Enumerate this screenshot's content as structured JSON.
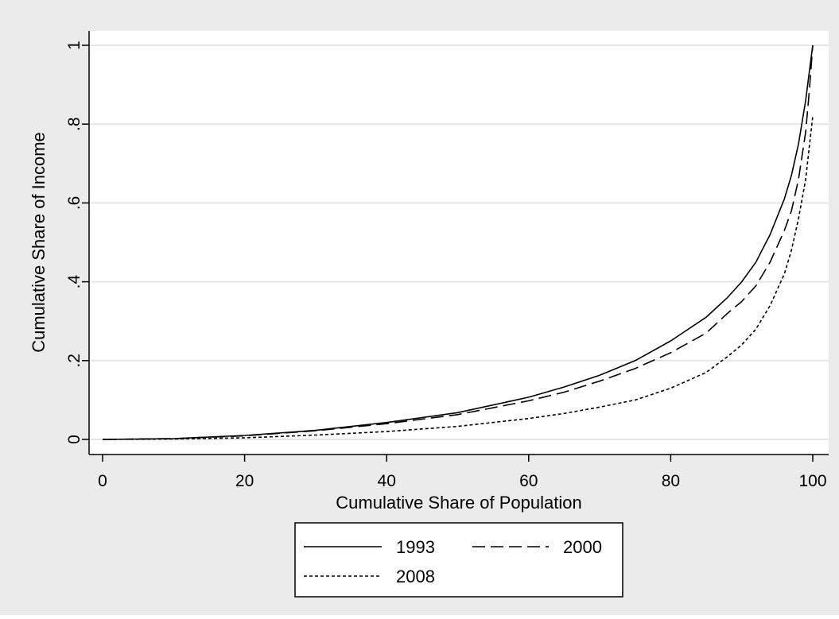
{
  "chart_data": {
    "type": "line",
    "xlabel": "Cumulative Share of Population",
    "ylabel": "Cumulative Share of Income",
    "xlim": [
      0,
      100
    ],
    "ylim": [
      0,
      1
    ],
    "xticks": [
      {
        "value": 0,
        "label": "0"
      },
      {
        "value": 20,
        "label": "20"
      },
      {
        "value": 40,
        "label": "40"
      },
      {
        "value": 60,
        "label": "60"
      },
      {
        "value": 80,
        "label": "80"
      },
      {
        "value": 100,
        "label": "100"
      }
    ],
    "yticks": [
      {
        "value": 0,
        "label": "0"
      },
      {
        "value": 0.2,
        "label": ".2"
      },
      {
        "value": 0.4,
        "label": ".4"
      },
      {
        "value": 0.6,
        "label": ".6"
      },
      {
        "value": 0.8,
        "label": ".8"
      },
      {
        "value": 1,
        "label": "1"
      }
    ],
    "grid": "horizontal",
    "legend_placement": "bottom",
    "colors": {
      "outer_background": "#ebebeb",
      "plot_background": "#ffffff",
      "grid": "#e6e6e6",
      "line": "#000000"
    },
    "series": [
      {
        "name": "1993",
        "style": "solid",
        "x": [
          0,
          10,
          20,
          30,
          40,
          50,
          60,
          65,
          70,
          75,
          80,
          85,
          88,
          90,
          92,
          94,
          96,
          97,
          98,
          99,
          99.5,
          100
        ],
        "y": [
          0,
          0.002,
          0.01,
          0.023,
          0.043,
          0.068,
          0.107,
          0.133,
          0.163,
          0.2,
          0.25,
          0.31,
          0.36,
          0.4,
          0.45,
          0.52,
          0.61,
          0.67,
          0.75,
          0.86,
          0.93,
          1.0
        ]
      },
      {
        "name": "2000",
        "style": "dashed",
        "x": [
          0,
          10,
          20,
          30,
          40,
          50,
          60,
          65,
          70,
          75,
          80,
          85,
          88,
          90,
          92,
          94,
          96,
          97,
          98,
          99,
          99.5,
          100
        ],
        "y": [
          0,
          0.002,
          0.009,
          0.022,
          0.04,
          0.063,
          0.098,
          0.12,
          0.148,
          0.18,
          0.22,
          0.27,
          0.32,
          0.35,
          0.39,
          0.45,
          0.53,
          0.58,
          0.66,
          0.78,
          0.88,
          1.0
        ]
      },
      {
        "name": "2008",
        "style": "dotted",
        "x": [
          0,
          10,
          20,
          30,
          40,
          50,
          60,
          65,
          70,
          75,
          80,
          85,
          88,
          90,
          92,
          94,
          96,
          97,
          98,
          99,
          99.5,
          100
        ],
        "y": [
          0,
          0.001,
          0.004,
          0.011,
          0.02,
          0.033,
          0.053,
          0.066,
          0.082,
          0.1,
          0.13,
          0.17,
          0.21,
          0.24,
          0.28,
          0.34,
          0.42,
          0.48,
          0.56,
          0.66,
          0.74,
          0.82
        ]
      }
    ]
  }
}
